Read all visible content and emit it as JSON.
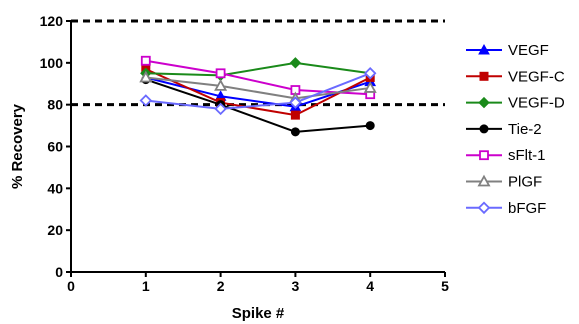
{
  "chart_data": {
    "type": "line",
    "xlabel": "Spike #",
    "ylabel": "% Recovery",
    "xlim": [
      0,
      5
    ],
    "ylim": [
      0,
      120
    ],
    "xticks": [
      "0",
      "1",
      "2",
      "3",
      "4",
      "5"
    ],
    "yticks": [
      "0",
      "20",
      "40",
      "60",
      "80",
      "100",
      "120"
    ],
    "reference_lines": [
      80,
      120
    ],
    "reference_line_style": "dashed",
    "legend_position": "right",
    "x": [
      1,
      2,
      3,
      4
    ],
    "series": [
      {
        "name": "VEGF",
        "values": [
          93,
          84,
          79,
          91
        ],
        "color": "#0000ff",
        "marker": "triangle-up"
      },
      {
        "name": "VEGF-C",
        "values": [
          97,
          81,
          75,
          93
        ],
        "color": "#c00000",
        "marker": "square"
      },
      {
        "name": "VEGF-D",
        "values": [
          95,
          94,
          100,
          95
        ],
        "color": "#1a8a1a",
        "marker": "diamond"
      },
      {
        "name": "Tie-2",
        "values": [
          92,
          80,
          67,
          70
        ],
        "color": "#000000",
        "marker": "circle"
      },
      {
        "name": "sFlt-1",
        "values": [
          101,
          95,
          87,
          85
        ],
        "color": "#cc00cc",
        "marker": "square-open"
      },
      {
        "name": "PlGF",
        "values": [
          93,
          89,
          83,
          88
        ],
        "color": "#808080",
        "marker": "triangle-up-open"
      },
      {
        "name": "bFGF",
        "values": [
          82,
          78,
          81,
          95
        ],
        "color": "#6a6aff",
        "marker": "diamond-open"
      }
    ]
  }
}
